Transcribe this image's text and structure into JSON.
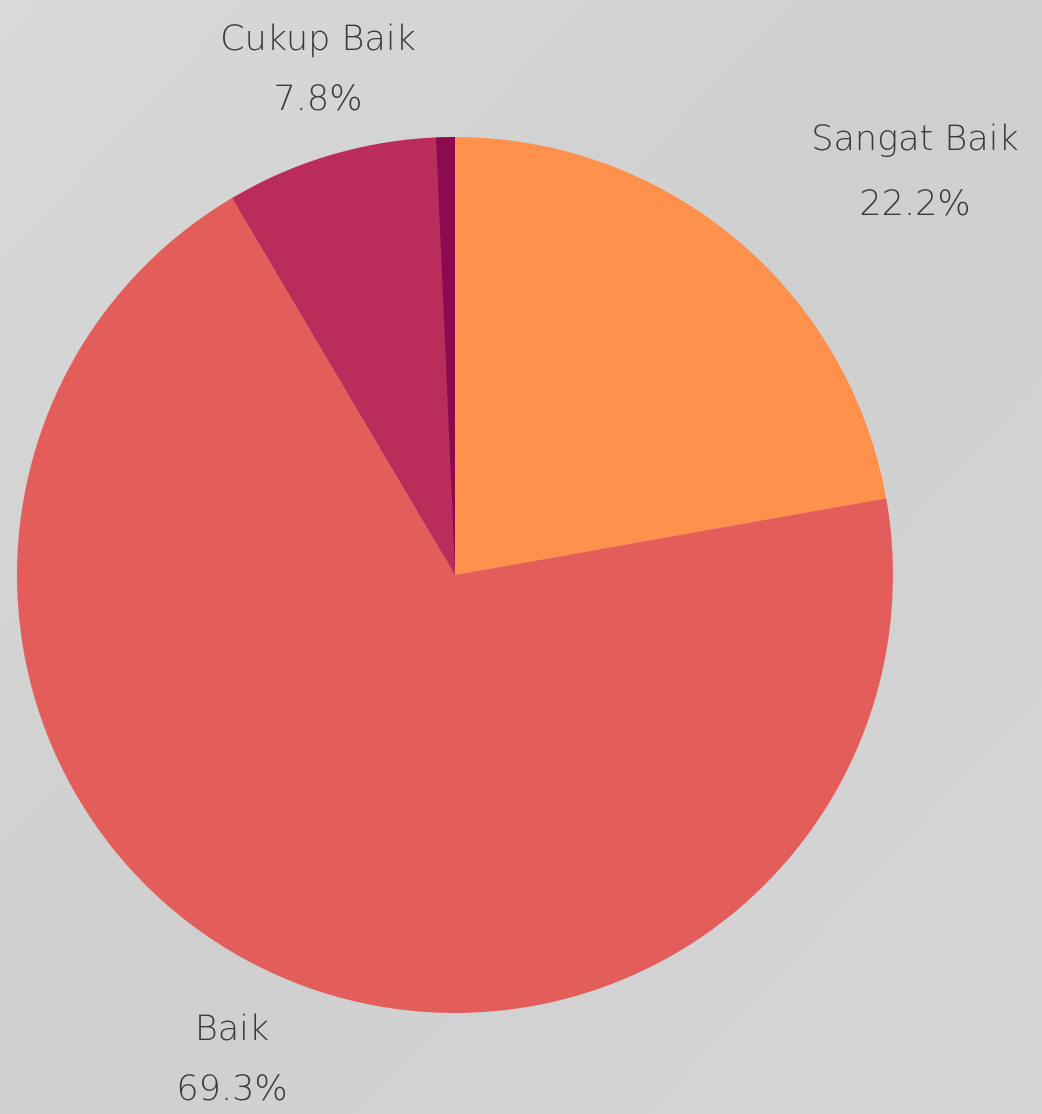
{
  "chart_data": {
    "type": "pie",
    "categories": [
      "Sangat Baik",
      "Baik",
      "Cukup Baik",
      null
    ],
    "values": [
      22.2,
      69.3,
      7.8,
      0.7
    ],
    "value_labels": [
      "22.2%",
      "69.3%",
      "7.8%",
      null
    ],
    "colors": [
      "#ff914d",
      "#e35d5a",
      "#ba2d5a",
      "#8b0a50"
    ]
  }
}
